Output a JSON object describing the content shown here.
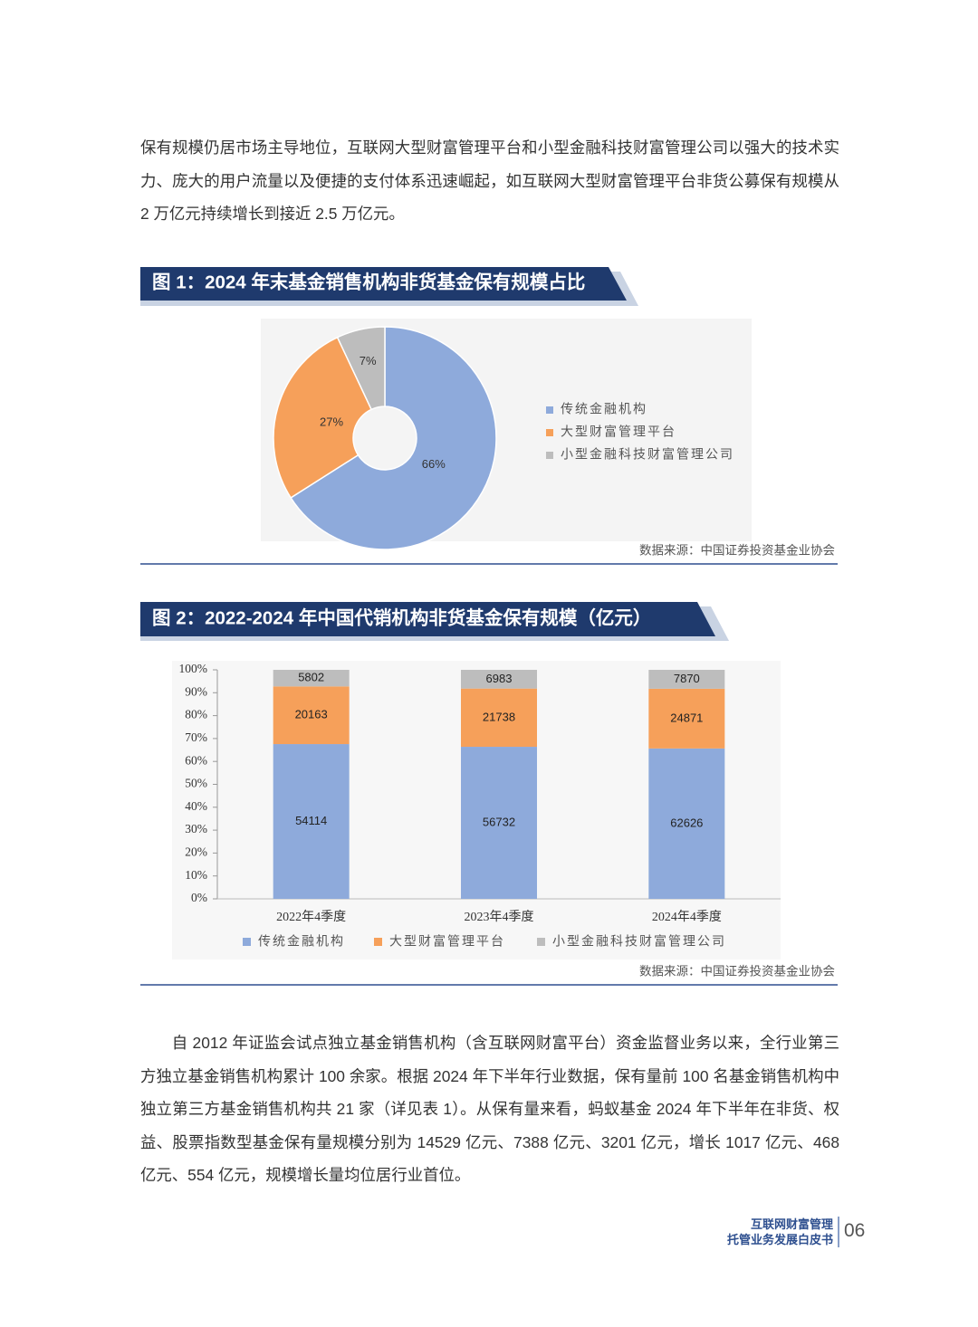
{
  "paragraphs": [
    "保有规模仍居市场主导地位，互联网大型财富管理平台和小型金融科技财富管理公司以强大的技术实力、庞大的用户流量以及便捷的支付体系迅速崛起，如互联网大型财富管理平台非货公募保有规模从 2 万亿元持续增长到接近 2.5 万亿元。",
    "自 2012 年证监会试点独立基金销售机构（含互联网财富平台）资金监督业务以来，全行业第三方独立基金销售机构累计 100 余家。根据 2024 年下半年行业数据，保有量前 100 名基金销售机构中独立第三方基金销售机构共 21 家（详见表 1）。从保有量来看，蚂蚁基金 2024 年下半年在非货、权益、股票指数型基金保有量规模分别为 14529 亿元、7388 亿元、3201 亿元，增长 1017 亿元、468 亿元、554 亿元，规模增长量均位居行业首位。"
  ],
  "chart_data": [
    {
      "type": "pie",
      "title": "图 1：2024 年末基金销售机构非货基金保有规模占比",
      "categories": [
        "传统金融机构",
        "大型财富管理平台",
        "小型金融科技财富管理公司"
      ],
      "values": [
        66,
        27,
        7
      ],
      "value_labels": [
        "66%",
        "27%",
        "7%"
      ],
      "colors": [
        "#8eaadb",
        "#f6a05a",
        "#bdbdbd"
      ],
      "legend": "right",
      "source": "数据来源：中国证券投资基金业协会"
    },
    {
      "type": "bar",
      "stack": "percent",
      "title": "图 2：2022-2024 年中国代销机构非货基金保有规模（亿元）",
      "categories": [
        "2022年4季度",
        "2023年4季度",
        "2024年4季度"
      ],
      "series": [
        {
          "name": "传统金融机构",
          "color": "#8eaadb",
          "values": [
            54114,
            56732,
            62626
          ]
        },
        {
          "name": "大型财富管理平台",
          "color": "#f6a05a",
          "values": [
            20163,
            21738,
            24871
          ]
        },
        {
          "name": "小型金融科技财富管理公司",
          "color": "#bdbdbd",
          "values": [
            5802,
            6983,
            7870
          ]
        }
      ],
      "ylim": [
        0,
        100
      ],
      "yticks": [
        {
          "value": 0,
          "label": "0%"
        },
        {
          "value": 10,
          "label": "10%"
        },
        {
          "value": 20,
          "label": "20%"
        },
        {
          "value": 30,
          "label": "30%"
        },
        {
          "value": 40,
          "label": "40%"
        },
        {
          "value": 50,
          "label": "50%"
        },
        {
          "value": 60,
          "label": "60%"
        },
        {
          "value": 70,
          "label": "70%"
        },
        {
          "value": 80,
          "label": "80%"
        },
        {
          "value": 90,
          "label": "90%"
        },
        {
          "value": 100,
          "label": "100%"
        }
      ],
      "legend": "bottom",
      "source": "数据来源：中国证券投资基金业协会"
    }
  ],
  "footer": {
    "title_line1": "互联网财富管理",
    "title_line2": "托管业务发展白皮书",
    "page": "06"
  }
}
